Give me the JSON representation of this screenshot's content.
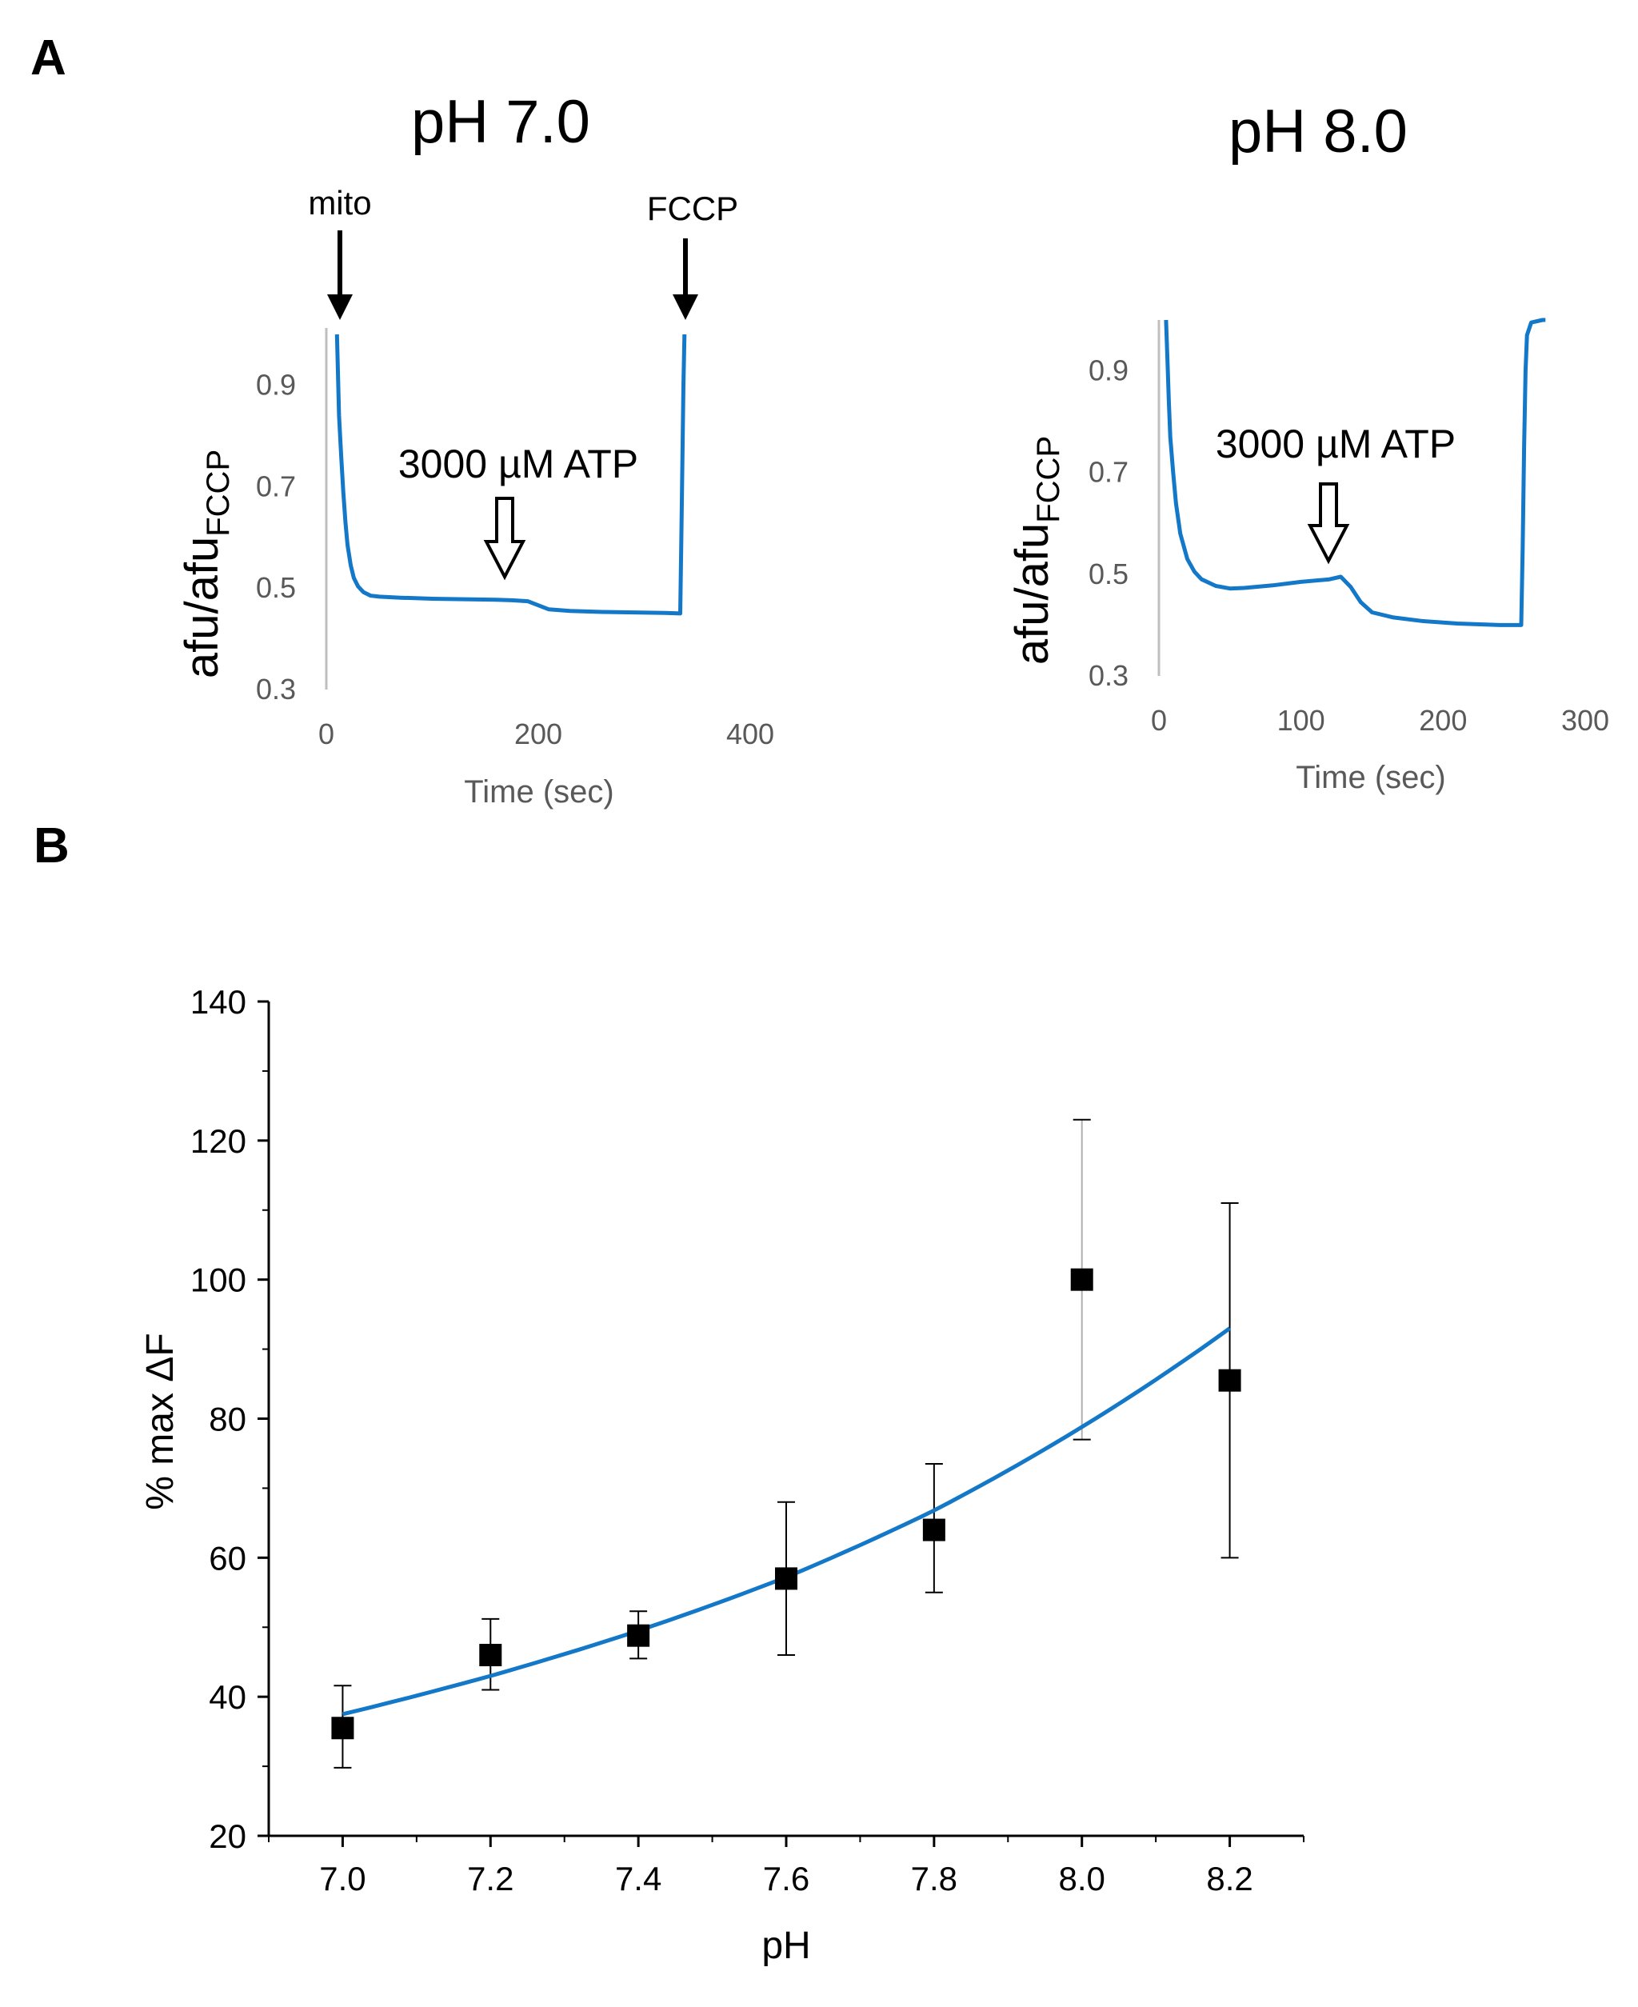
{
  "panel_labels": {
    "a": "A",
    "b": "B"
  },
  "colors": {
    "trace": "#1478c8",
    "marker": "#000000",
    "axis_a": "#bfbfbf",
    "axis_b": "#000000"
  },
  "chart_data": [
    {
      "panel": "A",
      "type": "line",
      "title": "pH 7.0",
      "xlabel": "Time (sec)",
      "ylabel": "afu/afu",
      "ylabel_subscript": "FCCP",
      "xlim": [
        0,
        400
      ],
      "ylim": [
        0.3,
        1.0
      ],
      "x_ticks": [
        "0",
        "200",
        "400"
      ],
      "y_ticks": [
        "0.3",
        "0.5",
        "0.7",
        "0.9"
      ],
      "annotations": {
        "mito": "mito",
        "fccp": "FCCP",
        "atp": "3000 µM ATP"
      },
      "series": [
        {
          "x": [
            10,
            11,
            12,
            14,
            16,
            18,
            20,
            23,
            26,
            30,
            35,
            42,
            50,
            70,
            100,
            130,
            160,
            175,
            190,
            200,
            210,
            230,
            260,
            290,
            320,
            334,
            335,
            336,
            337,
            338
          ],
          "y": [
            1.0,
            0.92,
            0.84,
            0.76,
            0.69,
            0.63,
            0.585,
            0.545,
            0.52,
            0.503,
            0.492,
            0.485,
            0.483,
            0.481,
            0.479,
            0.478,
            0.477,
            0.476,
            0.474,
            0.466,
            0.458,
            0.455,
            0.453,
            0.452,
            0.451,
            0.45,
            0.6,
            0.75,
            0.9,
            1.0
          ]
        }
      ]
    },
    {
      "panel": "A",
      "type": "line",
      "title": "pH 8.0",
      "xlabel": "Time (sec)",
      "ylabel": "afu/afu",
      "ylabel_subscript": "FCCP",
      "xlim": [
        0,
        300
      ],
      "ylim": [
        0.3,
        1.0
      ],
      "x_ticks": [
        "0",
        "100",
        "200",
        "300"
      ],
      "y_ticks": [
        "0.3",
        "0.5",
        "0.7",
        "0.9"
      ],
      "annotations": {
        "atp": "3000 µM ATP"
      },
      "series": [
        {
          "x": [
            5,
            6,
            7,
            8,
            10,
            12,
            15,
            20,
            25,
            30,
            40,
            50,
            60,
            80,
            100,
            120,
            128,
            135,
            142,
            150,
            165,
            185,
            210,
            240,
            255,
            256,
            257,
            258,
            259,
            262,
            270,
            272
          ],
          "y": [
            1.0,
            0.92,
            0.84,
            0.77,
            0.7,
            0.64,
            0.58,
            0.53,
            0.505,
            0.49,
            0.477,
            0.472,
            0.473,
            0.478,
            0.485,
            0.49,
            0.495,
            0.475,
            0.445,
            0.425,
            0.415,
            0.408,
            0.403,
            0.4,
            0.4,
            0.55,
            0.75,
            0.9,
            0.97,
            0.995,
            1.0,
            1.0
          ]
        }
      ]
    },
    {
      "panel": "B",
      "type": "scatter",
      "title": "",
      "xlabel": "pH",
      "ylabel": "% max ΔF",
      "xlim": [
        6.9,
        8.3
      ],
      "ylim": [
        20,
        140
      ],
      "x_ticks": [
        "7.0",
        "7.2",
        "7.4",
        "7.6",
        "7.8",
        "8.0",
        "8.2"
      ],
      "y_ticks": [
        "20",
        "40",
        "60",
        "80",
        "100",
        "120",
        "140"
      ],
      "points": [
        {
          "x": 7.0,
          "y": 35.5,
          "err_low": 29.8,
          "err_high": 41.6
        },
        {
          "x": 7.2,
          "y": 46.0,
          "err_low": 41.0,
          "err_high": 51.2
        },
        {
          "x": 7.4,
          "y": 48.8,
          "err_low": 45.5,
          "err_high": 52.3
        },
        {
          "x": 7.6,
          "y": 57.0,
          "err_low": 46.0,
          "err_high": 68.0
        },
        {
          "x": 7.8,
          "y": 64.0,
          "err_low": 55.0,
          "err_high": 73.5
        },
        {
          "x": 8.0,
          "y": 100.0,
          "err_low": 77.0,
          "err_high": 123.0
        },
        {
          "x": 8.2,
          "y": 85.5,
          "err_low": 60.0,
          "err_high": 111.0
        }
      ],
      "fit": {
        "x": [
          7.0,
          7.2,
          7.4,
          7.6,
          7.8,
          8.0,
          8.2
        ],
        "y": [
          37.5,
          43.0,
          49.5,
          57.2,
          66.8,
          78.8,
          93.0
        ]
      }
    }
  ]
}
